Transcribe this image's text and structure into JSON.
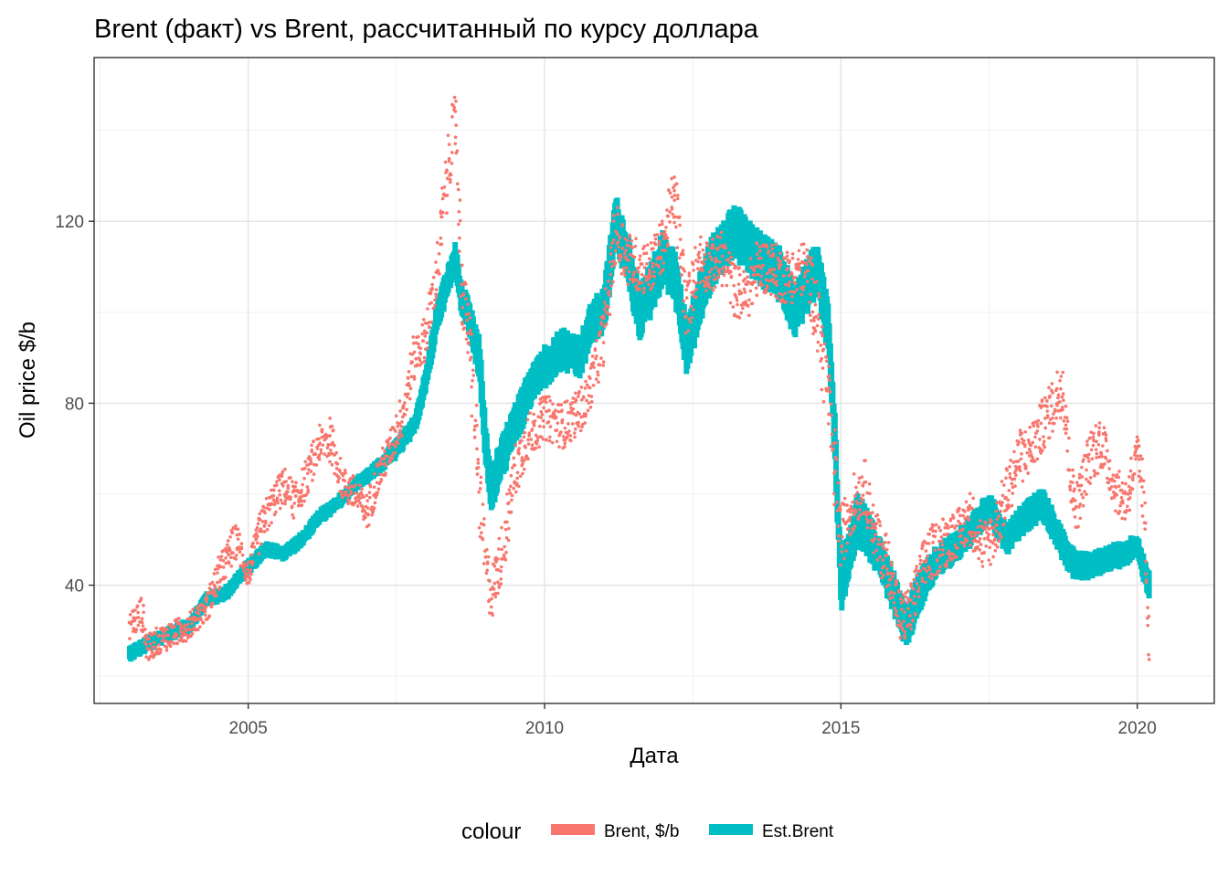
{
  "chart_data": {
    "type": "scatter",
    "title": "Brent (факт) vs Brent, рассчитанный по курсу доллара",
    "xlabel": "Дата",
    "ylabel": "Oil price $/b",
    "xlim": [
      2002.4,
      2021.3
    ],
    "ylim": [
      14,
      156
    ],
    "x_ticks": [
      2005,
      2010,
      2015,
      2020
    ],
    "x_tick_labels": [
      "2005",
      "2010",
      "2015",
      "2020"
    ],
    "y_ticks": [
      40,
      80,
      120
    ],
    "y_tick_labels": [
      "40",
      "80",
      "120"
    ],
    "grid": true,
    "legend": {
      "title": "colour",
      "position": "bottom",
      "entries": [
        {
          "label": "Brent, $/b",
          "color": "#F8766D"
        },
        {
          "label": "Est.Brent",
          "color": "#00BFC4"
        }
      ]
    },
    "series": [
      {
        "name": "Brent, $/b",
        "color": "#F8766D",
        "x": [
          2003.0,
          2003.2,
          2003.3,
          2003.5,
          2003.7,
          2004.0,
          2004.3,
          2004.5,
          2004.8,
          2005.0,
          2005.2,
          2005.4,
          2005.6,
          2005.8,
          2006.0,
          2006.2,
          2006.4,
          2006.6,
          2006.8,
          2007.0,
          2007.2,
          2007.4,
          2007.6,
          2007.8,
          2008.0,
          2008.2,
          2008.35,
          2008.5,
          2008.6,
          2008.75,
          2008.9,
          2009.0,
          2009.1,
          2009.3,
          2009.5,
          2009.7,
          2010.0,
          2010.3,
          2010.5,
          2010.7,
          2011.0,
          2011.2,
          2011.4,
          2011.6,
          2011.8,
          2012.0,
          2012.2,
          2012.4,
          2012.6,
          2012.8,
          2013.0,
          2013.2,
          2013.4,
          2013.6,
          2013.8,
          2014.0,
          2014.2,
          2014.4,
          2014.6,
          2014.8,
          2015.0,
          2015.2,
          2015.4,
          2015.6,
          2015.8,
          2016.0,
          2016.2,
          2016.4,
          2016.6,
          2016.8,
          2017.0,
          2017.2,
          2017.4,
          2017.6,
          2017.8,
          2018.0,
          2018.2,
          2018.4,
          2018.6,
          2018.75,
          2018.9,
          2019.0,
          2019.2,
          2019.4,
          2019.6,
          2019.8,
          2020.0,
          2020.1,
          2020.2
        ],
        "y": [
          31,
          34,
          26,
          28,
          29,
          31,
          35,
          42,
          50,
          42,
          52,
          58,
          62,
          58,
          64,
          71,
          72,
          62,
          60,
          56,
          64,
          70,
          78,
          90,
          95,
          110,
          130,
          143,
          105,
          92,
          60,
          45,
          38,
          48,
          65,
          72,
          77,
          75,
          77,
          80,
          95,
          118,
          112,
          110,
          110,
          115,
          126,
          100,
          112,
          110,
          112,
          105,
          103,
          110,
          110,
          108,
          108,
          110,
          100,
          80,
          50,
          58,
          62,
          50,
          45,
          32,
          35,
          45,
          48,
          50,
          52,
          55,
          48,
          52,
          60,
          68,
          70,
          75,
          80,
          85,
          60,
          58,
          68,
          72,
          62,
          58,
          68,
          60,
          30
        ],
        "band": [
          3,
          4,
          3,
          3,
          3,
          3,
          3,
          4,
          4,
          3,
          4,
          4,
          4,
          4,
          4,
          4,
          5,
          4,
          4,
          4,
          4,
          4,
          5,
          5,
          5,
          6,
          8,
          6,
          7,
          8,
          8,
          6,
          6,
          6,
          6,
          5,
          5,
          5,
          5,
          5,
          6,
          7,
          6,
          6,
          6,
          6,
          7,
          7,
          6,
          6,
          6,
          6,
          6,
          6,
          6,
          6,
          6,
          6,
          8,
          9,
          7,
          6,
          6,
          6,
          6,
          6,
          6,
          6,
          6,
          6,
          5,
          6,
          6,
          6,
          6,
          6,
          6,
          6,
          6,
          7,
          6,
          6,
          6,
          6,
          5,
          5,
          6,
          7,
          8
        ]
      },
      {
        "name": "Est.Brent",
        "color": "#00BFC4",
        "x": [
          2003.0,
          2003.3,
          2003.6,
          2004.0,
          2004.3,
          2004.6,
          2005.0,
          2005.3,
          2005.6,
          2005.9,
          2006.2,
          2006.5,
          2006.8,
          2007.2,
          2007.5,
          2007.8,
          2008.0,
          2008.2,
          2008.4,
          2008.5,
          2008.6,
          2008.7,
          2008.8,
          2008.9,
          2009.0,
          2009.1,
          2009.2,
          2009.4,
          2009.6,
          2009.8,
          2010.0,
          2010.3,
          2010.6,
          2010.8,
          2011.0,
          2011.2,
          2011.4,
          2011.6,
          2011.8,
          2012.0,
          2012.2,
          2012.4,
          2012.6,
          2012.8,
          2013.0,
          2013.2,
          2013.4,
          2013.6,
          2013.8,
          2014.0,
          2014.2,
          2014.4,
          2014.6,
          2014.8,
          2014.9,
          2015.0,
          2015.1,
          2015.3,
          2015.5,
          2015.7,
          2015.9,
          2016.1,
          2016.3,
          2016.6,
          2016.9,
          2017.2,
          2017.5,
          2017.8,
          2018.1,
          2018.4,
          2018.7,
          2018.9,
          2019.2,
          2019.5,
          2019.8,
          2020.0,
          2020.1,
          2020.2
        ],
        "y": [
          25,
          27,
          29,
          31,
          37,
          38,
          44,
          48,
          47,
          50,
          55,
          58,
          62,
          66,
          70,
          75,
          85,
          100,
          108,
          112,
          103,
          100,
          95,
          90,
          72,
          60,
          65,
          72,
          78,
          85,
          88,
          92,
          90,
          98,
          100,
          120,
          112,
          100,
          105,
          112,
          108,
          92,
          102,
          110,
          115,
          118,
          115,
          112,
          110,
          108,
          100,
          105,
          110,
          95,
          72,
          40,
          45,
          55,
          50,
          45,
          38,
          30,
          38,
          45,
          48,
          52,
          57,
          50,
          55,
          58,
          50,
          45,
          44,
          46,
          47,
          49,
          44,
          40
        ],
        "band": [
          3,
          3,
          3,
          3,
          3,
          3,
          3,
          3,
          3,
          3,
          3,
          3,
          3,
          3,
          4,
          4,
          5,
          6,
          6,
          6,
          6,
          6,
          7,
          8,
          8,
          8,
          8,
          8,
          8,
          8,
          8,
          8,
          8,
          8,
          9,
          10,
          10,
          10,
          10,
          10,
          10,
          10,
          10,
          10,
          10,
          10,
          10,
          10,
          10,
          10,
          10,
          10,
          10,
          10,
          10,
          10,
          10,
          10,
          8,
          8,
          8,
          8,
          8,
          6,
          6,
          6,
          6,
          6,
          6,
          6,
          6,
          6,
          5,
          5,
          5,
          5,
          5,
          5
        ]
      }
    ]
  }
}
